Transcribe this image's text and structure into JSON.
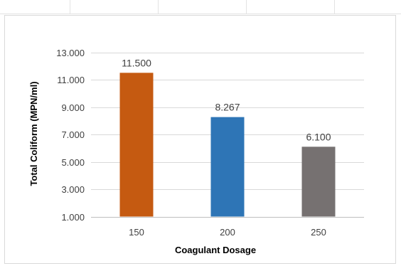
{
  "chart_data": {
    "type": "bar",
    "title": "",
    "xlabel": "Coagulant Dosage",
    "ylabel": "Total Coliform (MPN/ml)",
    "categories": [
      "150",
      "200",
      "250"
    ],
    "values": [
      11.5,
      8.267,
      6.1
    ],
    "data_labels": [
      "11.500",
      "8.267",
      "6.100"
    ],
    "colors": [
      "#C55A11",
      "#2E75B6",
      "#767171"
    ],
    "ylim": [
      1,
      13
    ],
    "yticks": [
      1,
      3,
      5,
      7,
      9,
      11,
      13
    ],
    "ytick_labels": [
      "1.000",
      "3.000",
      "5.000",
      "7.000",
      "9.000",
      "11.000",
      "13.000"
    ],
    "grid": true,
    "legend": "none"
  }
}
